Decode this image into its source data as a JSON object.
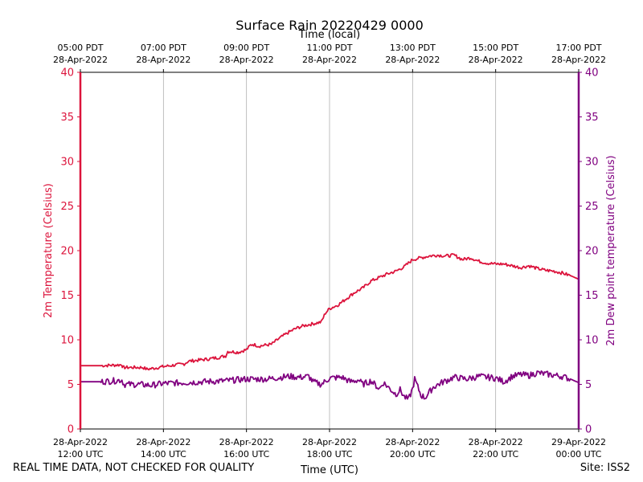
{
  "footer": {
    "note": "REAL TIME DATA, NOT CHECKED FOR QUALITY",
    "site": "Site: ISS2"
  },
  "colors": {
    "temperature": "#dc143c",
    "dewpoint": "#800080",
    "grid": "#b0b0b0",
    "axis": "#000000"
  },
  "chart_data": {
    "type": "line",
    "title": "Surface Rain 20220429 0000",
    "xlabel": "Time (UTC)",
    "xlabel_top": "Time (local)",
    "ylabel": "2m Temperature (Celsius)",
    "ylabel_right": "2m Dew point temperature (Celsius)",
    "xlim": [
      0,
      12
    ],
    "ylim": [
      0,
      40
    ],
    "ylim_right": [
      0,
      40
    ],
    "grid": "vertical",
    "yticks": [
      "0",
      "5",
      "10",
      "15",
      "20",
      "25",
      "30",
      "35",
      "40"
    ],
    "xticks_bottom": [
      {
        "x": 0,
        "line1": "28-Apr-2022",
        "line2": "12:00 UTC"
      },
      {
        "x": 2,
        "line1": "28-Apr-2022",
        "line2": "14:00 UTC"
      },
      {
        "x": 4,
        "line1": "28-Apr-2022",
        "line2": "16:00 UTC"
      },
      {
        "x": 6,
        "line1": "28-Apr-2022",
        "line2": "18:00 UTC"
      },
      {
        "x": 8,
        "line1": "28-Apr-2022",
        "line2": "20:00 UTC"
      },
      {
        "x": 10,
        "line1": "28-Apr-2022",
        "line2": "22:00 UTC"
      },
      {
        "x": 12,
        "line1": "29-Apr-2022",
        "line2": "00:00 UTC"
      }
    ],
    "xticks_top": [
      {
        "x": 0,
        "line1": "05:00 PDT",
        "line2": "28-Apr-2022"
      },
      {
        "x": 2,
        "line1": "07:00 PDT",
        "line2": "28-Apr-2022"
      },
      {
        "x": 4,
        "line1": "09:00 PDT",
        "line2": "28-Apr-2022"
      },
      {
        "x": 6,
        "line1": "11:00 PDT",
        "line2": "28-Apr-2022"
      },
      {
        "x": 8,
        "line1": "13:00 PDT",
        "line2": "28-Apr-2022"
      },
      {
        "x": 10,
        "line1": "15:00 PDT",
        "line2": "28-Apr-2022"
      },
      {
        "x": 12,
        "line1": "17:00 PDT",
        "line2": "28-Apr-2022"
      }
    ],
    "series": [
      {
        "name": "2m Temperature",
        "axis": "left",
        "x": [
          0,
          0.5,
          1.0,
          1.02,
          1.5,
          1.6,
          1.75,
          2.0,
          2.5,
          2.6,
          3.0,
          3.3,
          3.5,
          3.55,
          3.8,
          4.0,
          4.1,
          4.15,
          4.3,
          4.6,
          4.8,
          5.0,
          5.2,
          5.4,
          5.6,
          5.8,
          5.9,
          6.0,
          6.2,
          6.4,
          6.6,
          6.8,
          7.0,
          7.2,
          7.4,
          7.6,
          7.8,
          8.0,
          8.2,
          8.4,
          8.6,
          8.8,
          9.0,
          9.2,
          9.4,
          9.6,
          9.8,
          10.0,
          10.2,
          10.4,
          10.6,
          10.8,
          11.0,
          11.2,
          11.4,
          11.6,
          11.8,
          12.0
        ],
        "values": [
          7.1,
          7.1,
          7.2,
          6.9,
          6.9,
          6.7,
          6.8,
          7.0,
          7.3,
          7.6,
          7.8,
          8.0,
          8.2,
          8.7,
          8.6,
          8.9,
          9.4,
          9.5,
          9.3,
          9.5,
          10.2,
          10.8,
          11.3,
          11.6,
          11.8,
          12.0,
          13.0,
          13.5,
          13.9,
          14.6,
          15.3,
          15.8,
          16.6,
          17.0,
          17.4,
          17.7,
          18.2,
          19.0,
          19.2,
          19.4,
          19.5,
          19.4,
          19.5,
          19.0,
          19.2,
          18.8,
          18.6,
          18.5,
          18.5,
          18.3,
          18.1,
          18.3,
          18.0,
          17.8,
          17.7,
          17.5,
          17.2,
          16.8
        ]
      },
      {
        "name": "2m Dew point temperature",
        "axis": "right",
        "x": [
          0,
          0.5,
          0.8,
          1.0,
          1.05,
          1.4,
          1.7,
          2.0,
          2.5,
          3.0,
          3.5,
          4.0,
          4.5,
          5.0,
          5.3,
          5.5,
          5.6,
          5.8,
          6.0,
          6.3,
          6.5,
          6.7,
          6.8,
          7.0,
          7.2,
          7.3,
          7.5,
          7.6,
          7.7,
          7.8,
          7.9,
          8.0,
          8.05,
          8.2,
          8.3,
          8.5,
          8.7,
          9.0,
          9.3,
          9.6,
          10.0,
          10.2,
          10.4,
          10.6,
          10.8,
          11.0,
          11.3,
          11.6,
          11.8,
          12.0
        ],
        "values": [
          5.3,
          5.3,
          5.4,
          5.5,
          5.0,
          5.0,
          4.9,
          5.1,
          5.2,
          5.3,
          5.4,
          5.6,
          5.6,
          5.9,
          5.8,
          5.9,
          5.3,
          5.0,
          5.7,
          5.8,
          5.3,
          5.5,
          5.0,
          5.4,
          4.5,
          5.2,
          4.3,
          3.9,
          4.4,
          3.6,
          3.3,
          4.5,
          5.6,
          3.8,
          3.5,
          4.7,
          5.2,
          5.8,
          5.6,
          5.9,
          5.7,
          5.3,
          5.9,
          6.1,
          6.0,
          6.3,
          6.1,
          5.9,
          5.6,
          5.2
        ]
      }
    ]
  }
}
